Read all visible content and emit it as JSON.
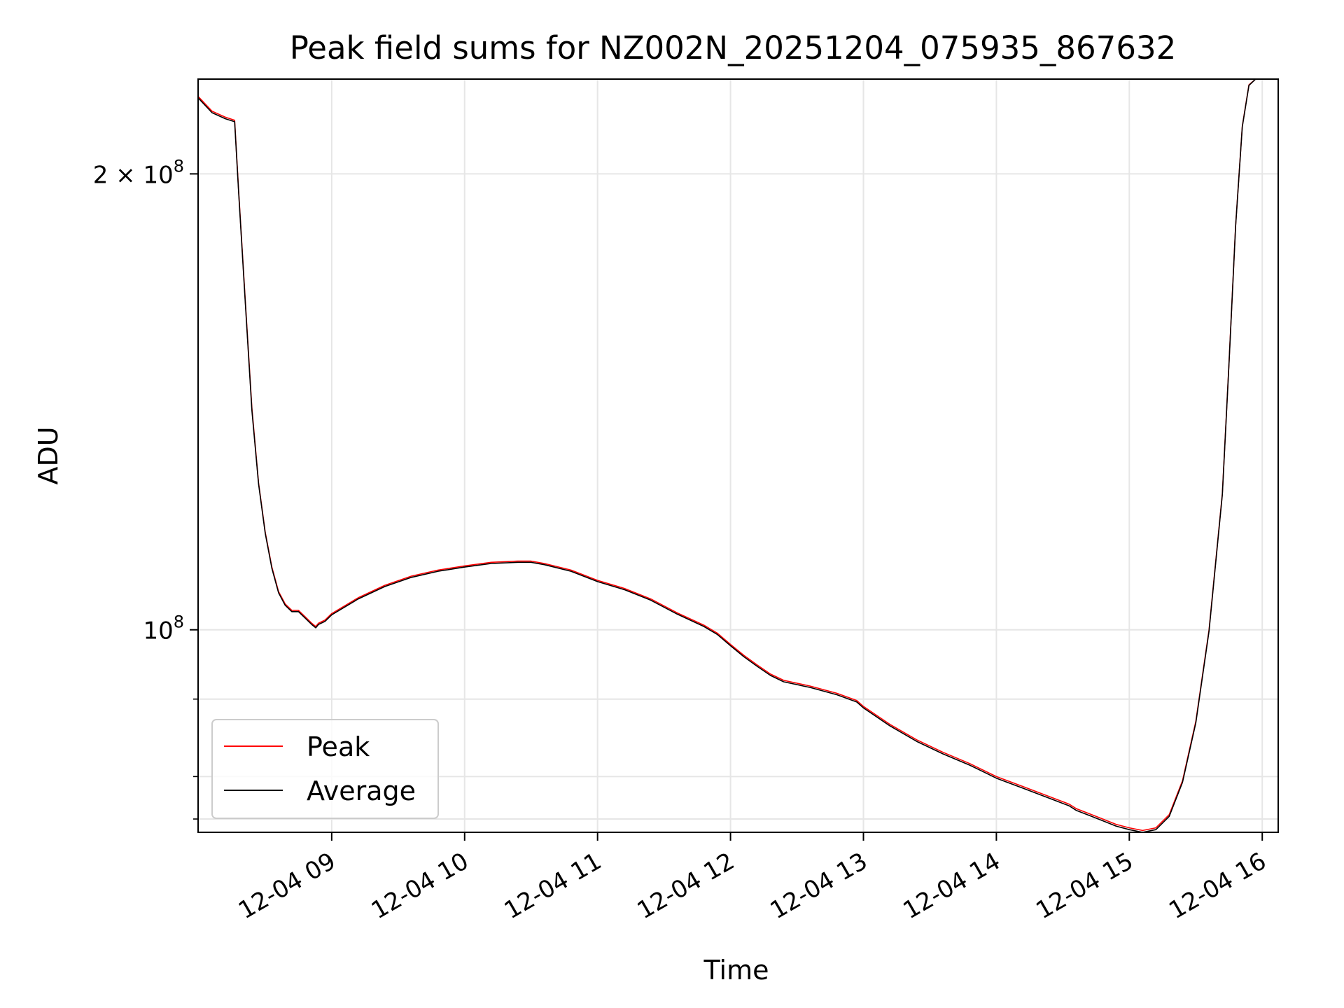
{
  "chart_data": {
    "type": "line",
    "title": "Peak field sums for NZ002N_20251204_075935_867632",
    "xlabel": "Time",
    "ylabel": "ADU",
    "xlim_hours": [
      7.995,
      16.12
    ],
    "ylim": [
      73500000,
      231000000
    ],
    "y_scale": "log",
    "grid": true,
    "legend_position": "lower-left",
    "x_ticks": [
      {
        "hour": 9,
        "label": "12-04 09"
      },
      {
        "hour": 10,
        "label": "12-04 10"
      },
      {
        "hour": 11,
        "label": "12-04 11"
      },
      {
        "hour": 12,
        "label": "12-04 12"
      },
      {
        "hour": 13,
        "label": "12-04 13"
      },
      {
        "hour": 14,
        "label": "12-04 14"
      },
      {
        "hour": 15,
        "label": "12-04 15"
      },
      {
        "hour": 16,
        "label": "12-04 16"
      }
    ],
    "y_major_ticks": [
      {
        "value": 100000000,
        "base": "10",
        "exp": "8"
      },
      {
        "value": 200000000,
        "base": "2 × 10",
        "exp": "8"
      }
    ],
    "y_minor_ticks": [
      75000000,
      80000000,
      90000000
    ],
    "series": [
      {
        "name": "Peak",
        "color": "#ff0000",
        "x_hours": [
          7.995,
          8.1,
          8.2,
          8.27,
          8.3,
          8.35,
          8.4,
          8.45,
          8.5,
          8.55,
          8.6,
          8.65,
          8.7,
          8.75,
          8.8,
          8.85,
          8.88,
          8.9,
          8.95,
          9.0,
          9.2,
          9.4,
          9.6,
          9.8,
          10.0,
          10.2,
          10.4,
          10.5,
          10.6,
          10.8,
          11.0,
          11.2,
          11.4,
          11.6,
          11.8,
          11.9,
          12.0,
          12.1,
          12.2,
          12.3,
          12.4,
          12.6,
          12.8,
          12.95,
          13.0,
          13.2,
          13.4,
          13.6,
          13.8,
          14.0,
          14.2,
          14.5,
          14.55,
          14.6,
          14.7,
          14.8,
          14.9,
          15.0,
          15.1,
          15.2,
          15.3,
          15.4,
          15.5,
          15.6,
          15.7,
          15.75,
          15.8,
          15.85,
          15.9,
          15.95,
          16.0,
          16.12
        ],
        "values": [
          225000000,
          220000000,
          218000000,
          217000000,
          195000000,
          165000000,
          140000000,
          125000000,
          116000000,
          110000000,
          106000000,
          104000000,
          103000000,
          103000000,
          102000000,
          101000000,
          100500000,
          101000000,
          101500000,
          102500000,
          105000000,
          107000000,
          108500000,
          109500000,
          110200000,
          110800000,
          111000000,
          111000000,
          110600000,
          109500000,
          107800000,
          106500000,
          104800000,
          102600000,
          100700000,
          99500000,
          97800000,
          96200000,
          94800000,
          93500000,
          92600000,
          91800000,
          90800000,
          89800000,
          89000000,
          86600000,
          84600000,
          83000000,
          81600000,
          80000000,
          78800000,
          77000000,
          76700000,
          76200000,
          75600000,
          75000000,
          74400000,
          74000000,
          73700000,
          74000000,
          75500000,
          79500000,
          87000000,
          100000000,
          123000000,
          150000000,
          185000000,
          215000000,
          229000000,
          231000000,
          231000000,
          231000000
        ]
      },
      {
        "name": "Average",
        "color": "#000000",
        "x_hours": [
          7.995,
          8.1,
          8.2,
          8.27,
          8.3,
          8.35,
          8.4,
          8.45,
          8.5,
          8.55,
          8.6,
          8.65,
          8.7,
          8.75,
          8.8,
          8.85,
          8.88,
          8.9,
          8.95,
          9.0,
          9.2,
          9.4,
          9.6,
          9.8,
          10.0,
          10.2,
          10.4,
          10.5,
          10.6,
          10.8,
          11.0,
          11.2,
          11.4,
          11.6,
          11.8,
          11.9,
          12.0,
          12.1,
          12.2,
          12.3,
          12.4,
          12.6,
          12.8,
          12.95,
          13.0,
          13.2,
          13.4,
          13.6,
          13.8,
          14.0,
          14.2,
          14.5,
          14.55,
          14.6,
          14.7,
          14.8,
          14.9,
          15.0,
          15.1,
          15.2,
          15.3,
          15.4,
          15.5,
          15.6,
          15.7,
          15.75,
          15.8,
          15.85,
          15.9,
          15.95,
          16.0,
          16.12
        ],
        "values": [
          224500000,
          219500000,
          217500000,
          216500000,
          194500000,
          164500000,
          139500000,
          124800000,
          115800000,
          109800000,
          105800000,
          103800000,
          102800000,
          102800000,
          101800000,
          100800000,
          100300000,
          100800000,
          101300000,
          102300000,
          104800000,
          106800000,
          108300000,
          109300000,
          110000000,
          110600000,
          110800000,
          110800000,
          110400000,
          109300000,
          107600000,
          106300000,
          104600000,
          102400000,
          100500000,
          99300000,
          97600000,
          96000000,
          94600000,
          93300000,
          92400000,
          91600000,
          90600000,
          89600000,
          88800000,
          86400000,
          84400000,
          82800000,
          81400000,
          79800000,
          78600000,
          76800000,
          76500000,
          76000000,
          75400000,
          74800000,
          74200000,
          73800000,
          73500000,
          73800000,
          75300000,
          79300000,
          86800000,
          99800000,
          122800000,
          149800000,
          184800000,
          214800000,
          228800000,
          231000000,
          231000000,
          231000000
        ]
      }
    ]
  }
}
